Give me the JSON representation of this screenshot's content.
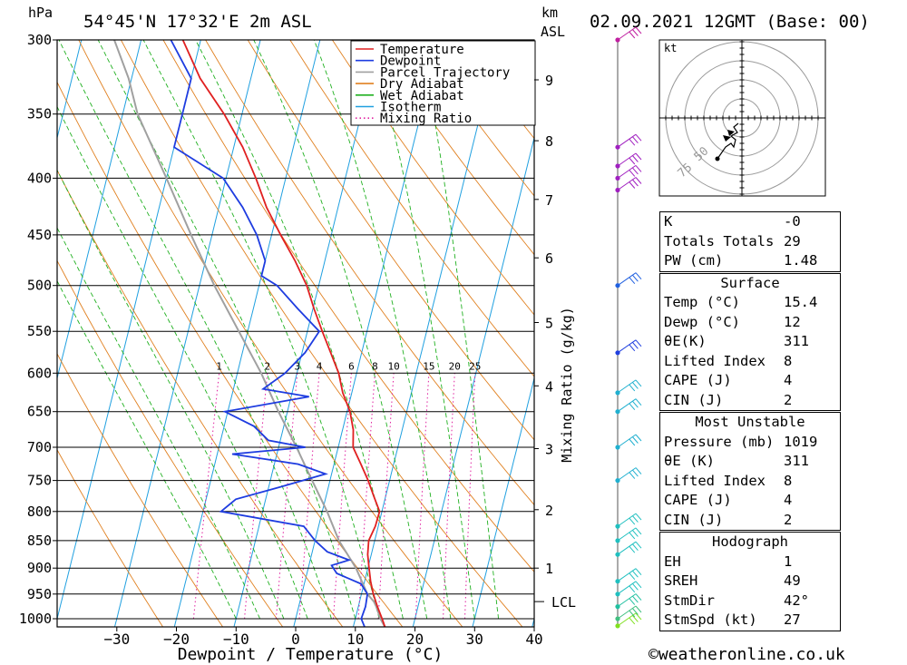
{
  "header": {
    "location": "54°45'N 17°32'E 2m ASL",
    "datetime": "02.09.2021 12GMT (Base: 00)",
    "p_unit": "hPa",
    "km_unit": "km",
    "km_unit2": "ASL"
  },
  "footer": {
    "xaxis_title": "Dewpoint / Temperature (°C)",
    "credit": "©weatheronline.co.uk",
    "mixing_ratio_title": "Mixing Ratio (g/kg)"
  },
  "legend": [
    {
      "label": "Temperature",
      "color": "#e02020",
      "style": "solid"
    },
    {
      "label": "Dewpoint",
      "color": "#1e3ce0",
      "style": "solid"
    },
    {
      "label": "Parcel Trajectory",
      "color": "#a0a0a0",
      "style": "solid"
    },
    {
      "label": "Dry Adiabat",
      "color": "#e08020",
      "style": "solid"
    },
    {
      "label": "Wet Adiabat",
      "color": "#20b020",
      "style": "solid"
    },
    {
      "label": "Isotherm",
      "color": "#20a0e0",
      "style": "solid"
    },
    {
      "label": "Mixing Ratio",
      "color": "#e020a0",
      "style": "dotted"
    }
  ],
  "chart_data": {
    "type": "line",
    "title": "54°45'N 17°32'E 2m ASL",
    "xlabel": "Dewpoint / Temperature (°C)",
    "ylabel": "hPa",
    "xlim": [
      -40,
      40
    ],
    "skew": 20,
    "pressure_levels": [
      300,
      350,
      400,
      450,
      500,
      550,
      600,
      650,
      700,
      750,
      800,
      850,
      900,
      950,
      1000
    ],
    "x_ticks": [
      -30,
      -20,
      -10,
      0,
      10,
      20,
      30,
      40
    ],
    "x_tick_labels": [
      "−30",
      "−20",
      "−10",
      "0",
      "10",
      "20",
      "30",
      "40"
    ],
    "km_ticks": [
      {
        "km": 9,
        "p": 326
      },
      {
        "km": 8,
        "p": 370
      },
      {
        "km": 7,
        "p": 418
      },
      {
        "km": 6,
        "p": 472
      },
      {
        "km": 5,
        "p": 540
      },
      {
        "km": 4,
        "p": 616
      },
      {
        "km": 3,
        "p": 702
      },
      {
        "km": 2,
        "p": 797
      },
      {
        "km": 1,
        "p": 900
      }
    ],
    "lcl": {
      "label": "LCL",
      "p": 965
    },
    "mixing_ratio_labels": [
      "1",
      "2",
      "3",
      "4",
      "6",
      "8",
      "10",
      "15",
      "20",
      "25"
    ],
    "mixing_ratio_values": [
      1,
      2,
      3,
      4,
      6,
      8,
      10,
      15,
      20,
      25
    ],
    "series": [
      {
        "name": "Temperature",
        "color": "#e02020",
        "points": [
          [
            1019,
            15.4
          ],
          [
            1000,
            14.5
          ],
          [
            975,
            13.2
          ],
          [
            950,
            12.0
          ],
          [
            925,
            11.0
          ],
          [
            900,
            10.2
          ],
          [
            875,
            9.4
          ],
          [
            850,
            9.0
          ],
          [
            825,
            9.5
          ],
          [
            800,
            9.6
          ],
          [
            775,
            8.0
          ],
          [
            750,
            6.4
          ],
          [
            725,
            4.5
          ],
          [
            700,
            2.5
          ],
          [
            675,
            1.8
          ],
          [
            650,
            0.5
          ],
          [
            625,
            -1.5
          ],
          [
            600,
            -3.0
          ],
          [
            575,
            -5.2
          ],
          [
            550,
            -7.5
          ],
          [
            525,
            -9.8
          ],
          [
            500,
            -12.0
          ],
          [
            475,
            -15.0
          ],
          [
            450,
            -18.5
          ],
          [
            425,
            -22.0
          ],
          [
            400,
            -25.0
          ],
          [
            375,
            -28.5
          ],
          [
            350,
            -33.0
          ],
          [
            325,
            -38.5
          ],
          [
            300,
            -43.0
          ]
        ]
      },
      {
        "name": "Dewpoint",
        "color": "#1e3ce0",
        "points": [
          [
            1019,
            12.0
          ],
          [
            1000,
            11.0
          ],
          [
            975,
            11.2
          ],
          [
            950,
            11.0
          ],
          [
            930,
            9.5
          ],
          [
            910,
            5.0
          ],
          [
            895,
            3.8
          ],
          [
            885,
            6.5
          ],
          [
            870,
            2.5
          ],
          [
            850,
            0.0
          ],
          [
            825,
            -2.5
          ],
          [
            800,
            -17.0
          ],
          [
            780,
            -15.0
          ],
          [
            760,
            -8.0
          ],
          [
            740,
            -1.0
          ],
          [
            725,
            -6.0
          ],
          [
            710,
            -17.5
          ],
          [
            700,
            -5.5
          ],
          [
            690,
            -12.0
          ],
          [
            670,
            -15.0
          ],
          [
            650,
            -20.5
          ],
          [
            630,
            -7.0
          ],
          [
            620,
            -15.0
          ],
          [
            600,
            -12.0
          ],
          [
            575,
            -9.5
          ],
          [
            550,
            -8.0
          ],
          [
            525,
            -12.5
          ],
          [
            500,
            -17.0
          ],
          [
            490,
            -20.0
          ],
          [
            475,
            -20.0
          ],
          [
            450,
            -22.5
          ],
          [
            425,
            -26.0
          ],
          [
            400,
            -30.5
          ],
          [
            375,
            -40.0
          ],
          [
            350,
            -40.0
          ],
          [
            325,
            -40.0
          ],
          [
            300,
            -45.0
          ]
        ]
      },
      {
        "name": "Parcel Trajectory",
        "color": "#a0a0a0",
        "points": [
          [
            1019,
            15.4
          ],
          [
            1000,
            14.2
          ],
          [
            975,
            13.0
          ],
          [
            965,
            12.4
          ],
          [
            950,
            11.0
          ],
          [
            900,
            8.0
          ],
          [
            850,
            4.0
          ],
          [
            800,
            0.8
          ],
          [
            750,
            -3.0
          ],
          [
            700,
            -7.0
          ],
          [
            650,
            -11.5
          ],
          [
            600,
            -16.0
          ],
          [
            550,
            -21.5
          ],
          [
            500,
            -27.5
          ],
          [
            450,
            -33.5
          ],
          [
            400,
            -40.0
          ],
          [
            350,
            -47.5
          ],
          [
            325,
            -50.5
          ],
          [
            300,
            -54.5
          ]
        ]
      }
    ]
  },
  "hodograph": {
    "unit": "kt",
    "ring_labels": [
      "50",
      "75"
    ]
  },
  "indices": {
    "rows": [
      {
        "label": "K",
        "value": "-0"
      },
      {
        "label": "Totals Totals",
        "value": "29"
      },
      {
        "label": "PW (cm)",
        "value": "1.48"
      }
    ]
  },
  "surface": {
    "title": "Surface",
    "rows": [
      {
        "label": "Temp (°C)",
        "value": "15.4"
      },
      {
        "label": "Dewp (°C)",
        "value": "12"
      },
      {
        "label": "θE(K)",
        "value": "311"
      },
      {
        "label": "Lifted Index",
        "value": "8"
      },
      {
        "label": "CAPE (J)",
        "value": "4"
      },
      {
        "label": "CIN (J)",
        "value": "2"
      }
    ]
  },
  "most_unstable": {
    "title": "Most Unstable",
    "rows": [
      {
        "label": "Pressure (mb)",
        "value": "1019"
      },
      {
        "label": "θE (K)",
        "value": "311"
      },
      {
        "label": "Lifted Index",
        "value": "8"
      },
      {
        "label": "CAPE (J)",
        "value": "4"
      },
      {
        "label": "CIN (J)",
        "value": "2"
      }
    ]
  },
  "hodograph_indices": {
    "title": "Hodograph",
    "rows": [
      {
        "label": "EH",
        "value": "1"
      },
      {
        "label": "SREH",
        "value": "49"
      },
      {
        "label": "StmDir",
        "value": "42°"
      },
      {
        "label": "StmSpd (kt)",
        "value": "27"
      }
    ]
  },
  "wind_profile": [
    {
      "p": 1015,
      "color": "#80e020"
    },
    {
      "p": 1000,
      "color": "#40c080"
    },
    {
      "p": 975,
      "color": "#20c0a0"
    },
    {
      "p": 950,
      "color": "#20c0c0"
    },
    {
      "p": 925,
      "color": "#20c0c0"
    },
    {
      "p": 875,
      "color": "#20c0c0"
    },
    {
      "p": 850,
      "color": "#20c0c0"
    },
    {
      "p": 825,
      "color": "#20c0c0"
    },
    {
      "p": 750,
      "color": "#20b0d0"
    },
    {
      "p": 700,
      "color": "#20b0d0"
    },
    {
      "p": 650,
      "color": "#20b0d0"
    },
    {
      "p": 625,
      "color": "#20b0d0"
    },
    {
      "p": 575,
      "color": "#2040e0"
    },
    {
      "p": 500,
      "color": "#2060e0"
    },
    {
      "p": 410,
      "color": "#a020c0"
    },
    {
      "p": 400,
      "color": "#a020c0"
    },
    {
      "p": 390,
      "color": "#a020c0"
    },
    {
      "p": 375,
      "color": "#a020c0"
    },
    {
      "p": 300,
      "color": "#c020a0"
    }
  ]
}
